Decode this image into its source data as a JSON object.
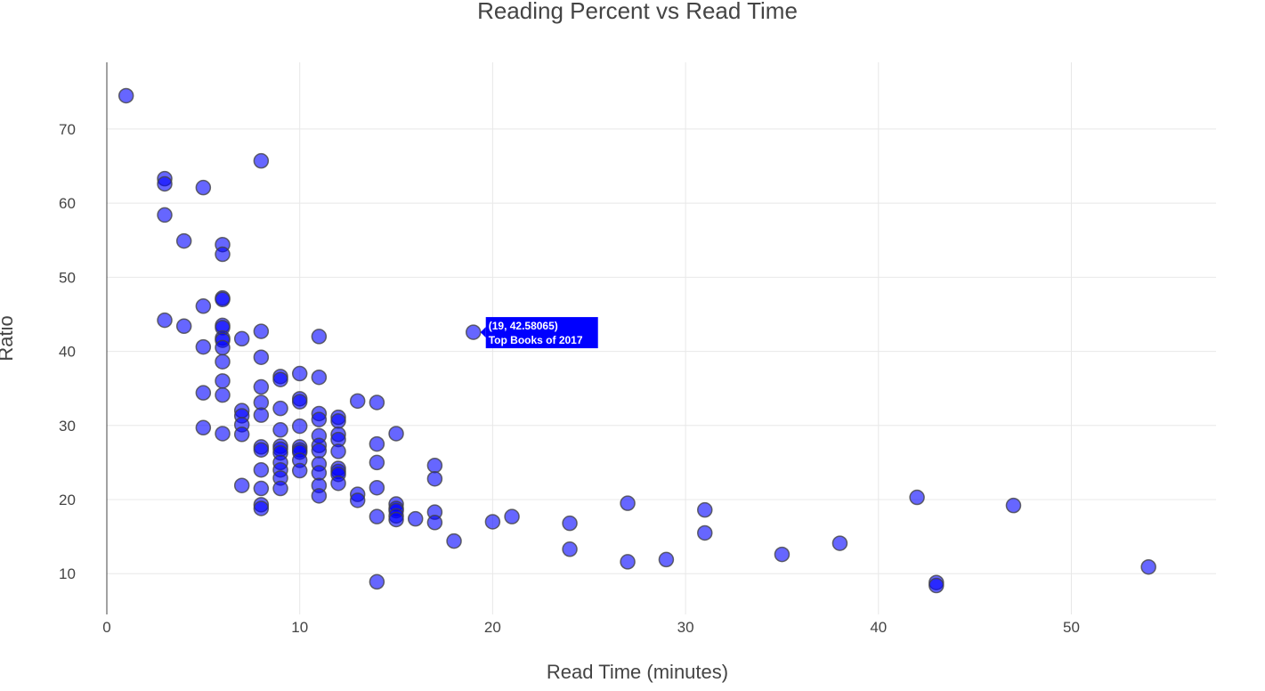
{
  "chart_data": {
    "type": "scatter",
    "title": "Reading Percent vs Read Time",
    "xlabel": "Read Time (minutes)",
    "ylabel": "Ratio",
    "xlim": [
      0,
      57.5
    ],
    "ylim": [
      4.5,
      79
    ],
    "x_ticks": [
      0,
      10,
      20,
      30,
      40,
      50
    ],
    "y_ticks": [
      10,
      20,
      30,
      40,
      50,
      60,
      70
    ],
    "grid": true,
    "marker_color": "#0000ff",
    "points": [
      [
        1,
        74.5
      ],
      [
        3,
        63.3
      ],
      [
        3,
        62.6
      ],
      [
        3,
        58.4
      ],
      [
        3,
        44.2
      ],
      [
        4,
        54.9
      ],
      [
        4,
        43.4
      ],
      [
        5,
        62.1
      ],
      [
        5,
        46.1
      ],
      [
        5,
        40.6
      ],
      [
        5,
        34.4
      ],
      [
        5,
        29.7
      ],
      [
        6,
        54.4
      ],
      [
        6,
        53.1
      ],
      [
        6,
        47.2
      ],
      [
        6,
        47.0
      ],
      [
        6,
        43.5
      ],
      [
        6,
        43.2
      ],
      [
        6,
        41.8
      ],
      [
        6,
        41.5
      ],
      [
        6,
        40.5
      ],
      [
        6,
        38.6
      ],
      [
        6,
        36.0
      ],
      [
        6,
        34.1
      ],
      [
        6,
        28.9
      ],
      [
        7,
        41.7
      ],
      [
        7,
        32.0
      ],
      [
        7,
        31.3
      ],
      [
        7,
        30.1
      ],
      [
        7,
        28.8
      ],
      [
        7,
        21.9
      ],
      [
        8,
        65.7
      ],
      [
        8,
        42.7
      ],
      [
        8,
        39.2
      ],
      [
        8,
        35.2
      ],
      [
        8,
        33.1
      ],
      [
        8,
        31.4
      ],
      [
        8,
        27.1
      ],
      [
        8,
        26.7
      ],
      [
        8,
        24.0
      ],
      [
        8,
        21.5
      ],
      [
        8,
        19.3
      ],
      [
        8,
        18.8
      ],
      [
        9,
        36.6
      ],
      [
        9,
        36.2
      ],
      [
        9,
        32.3
      ],
      [
        9,
        29.4
      ],
      [
        9,
        27.2
      ],
      [
        9,
        26.8
      ],
      [
        9,
        26.3
      ],
      [
        9,
        25.0
      ],
      [
        9,
        24.0
      ],
      [
        9,
        22.9
      ],
      [
        9,
        21.5
      ],
      [
        10,
        37.0
      ],
      [
        10,
        33.6
      ],
      [
        10,
        33.2
      ],
      [
        10,
        29.9
      ],
      [
        10,
        27.1
      ],
      [
        10,
        26.7
      ],
      [
        10,
        26.4
      ],
      [
        10,
        25.3
      ],
      [
        10,
        23.9
      ],
      [
        11,
        42.0
      ],
      [
        11,
        36.5
      ],
      [
        11,
        31.6
      ],
      [
        11,
        30.8
      ],
      [
        11,
        28.6
      ],
      [
        11,
        27.3
      ],
      [
        11,
        26.6
      ],
      [
        11,
        24.8
      ],
      [
        11,
        23.6
      ],
      [
        11,
        21.9
      ],
      [
        11,
        20.5
      ],
      [
        12,
        31.1
      ],
      [
        12,
        30.6
      ],
      [
        12,
        28.8
      ],
      [
        12,
        28.1
      ],
      [
        12,
        26.5
      ],
      [
        12,
        24.2
      ],
      [
        12,
        23.8
      ],
      [
        12,
        23.4
      ],
      [
        12,
        22.2
      ],
      [
        13,
        33.3
      ],
      [
        13,
        20.7
      ],
      [
        13,
        19.9
      ],
      [
        14,
        33.1
      ],
      [
        14,
        27.5
      ],
      [
        14,
        25.0
      ],
      [
        14,
        21.6
      ],
      [
        14,
        17.7
      ],
      [
        14,
        8.9
      ],
      [
        15,
        28.9
      ],
      [
        15,
        19.4
      ],
      [
        15,
        18.8
      ],
      [
        15,
        18.5
      ],
      [
        15,
        17.8
      ],
      [
        15,
        17.3
      ],
      [
        16,
        17.4
      ],
      [
        17,
        24.6
      ],
      [
        17,
        22.8
      ],
      [
        17,
        18.3
      ],
      [
        17,
        16.9
      ],
      [
        18,
        14.4
      ],
      [
        19,
        42.58065
      ],
      [
        20,
        17.0
      ],
      [
        21,
        17.7
      ],
      [
        24,
        16.8
      ],
      [
        24,
        13.3
      ],
      [
        27,
        19.5
      ],
      [
        27,
        11.6
      ],
      [
        29,
        11.9
      ],
      [
        31,
        18.6
      ],
      [
        31,
        15.5
      ],
      [
        35,
        12.6
      ],
      [
        38,
        14.1
      ],
      [
        42,
        20.3
      ],
      [
        43,
        8.8
      ],
      [
        43,
        8.4
      ],
      [
        47,
        19.2
      ],
      [
        54,
        10.9
      ]
    ],
    "hover": {
      "x": 19,
      "y": 42.58065,
      "coords_label": "(19, 42.58065)",
      "name_label": "Top Books of 2017"
    }
  }
}
